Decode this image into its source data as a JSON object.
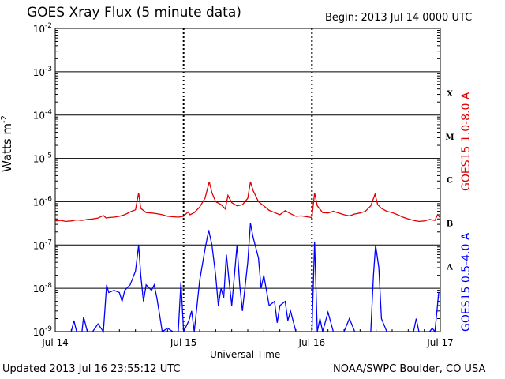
{
  "header": {
    "title": "GOES Xray Flux (5 minute data)",
    "begin": "Begin:  2013 Jul 14 0000 UTC"
  },
  "footer": {
    "updated": "Updated 2013 Jul 16 23:55:12 UTC",
    "credit": "NOAA/SWPC Boulder, CO USA"
  },
  "colors": {
    "long": "#e00000",
    "short": "#0000ff",
    "grid": "#000000"
  },
  "chart_data": {
    "type": "line",
    "xlabel": "Universal Time",
    "ylabel": "Watts m",
    "ylabel_sup": "-2",
    "y_scale": "log",
    "ylim": [
      1e-09,
      0.01
    ],
    "xlim_hours": [
      0,
      72
    ],
    "x_ticks": [
      "Jul 14",
      "Jul 15",
      "Jul 16",
      "Jul 17"
    ],
    "y_ticks": [
      {
        "value": 0.01,
        "base": "10",
        "exp": "-2"
      },
      {
        "value": 0.001,
        "base": "10",
        "exp": "-3"
      },
      {
        "value": 0.0001,
        "base": "10",
        "exp": "-4"
      },
      {
        "value": 1e-05,
        "base": "10",
        "exp": "-5"
      },
      {
        "value": 1e-06,
        "base": "10",
        "exp": "-6"
      },
      {
        "value": 1e-07,
        "base": "10",
        "exp": "-7"
      },
      {
        "value": 1e-08,
        "base": "10",
        "exp": "-8"
      },
      {
        "value": 1e-09,
        "base": "10",
        "exp": "-9"
      }
    ],
    "flare_classes": [
      {
        "label": "X",
        "value": 0.00032
      },
      {
        "label": "M",
        "value": 3.2e-05
      },
      {
        "label": "C",
        "value": 3.2e-06
      },
      {
        "label": "B",
        "value": 3.2e-07
      },
      {
        "label": "A",
        "value": 3.2e-08
      }
    ],
    "grid": true,
    "series": [
      {
        "name": "GOES15 1.0-8.0 A",
        "color": "#e00000",
        "points": [
          [
            0,
            3.6e-07
          ],
          [
            1,
            3.7e-07
          ],
          [
            2,
            3.5e-07
          ],
          [
            3,
            3.6e-07
          ],
          [
            4,
            3.8e-07
          ],
          [
            5,
            3.7e-07
          ],
          [
            6,
            3.9e-07
          ],
          [
            7,
            4e-07
          ],
          [
            8,
            4.2e-07
          ],
          [
            9,
            4.8e-07
          ],
          [
            9.5,
            4.2e-07
          ],
          [
            10,
            4.3e-07
          ],
          [
            11,
            4.4e-07
          ],
          [
            12,
            4.6e-07
          ],
          [
            13,
            5e-07
          ],
          [
            14,
            5.8e-07
          ],
          [
            15,
            6.5e-07
          ],
          [
            15.6,
            1.6e-06
          ],
          [
            16,
            7e-07
          ],
          [
            17,
            5.6e-07
          ],
          [
            18,
            5.5e-07
          ],
          [
            19,
            5.3e-07
          ],
          [
            20,
            5e-07
          ],
          [
            21,
            4.6e-07
          ],
          [
            22,
            4.5e-07
          ],
          [
            23,
            4.4e-07
          ],
          [
            24,
            4.6e-07
          ],
          [
            24.8,
            5.8e-07
          ],
          [
            25.2,
            5e-07
          ],
          [
            26,
            5.6e-07
          ],
          [
            27,
            7.5e-07
          ],
          [
            28,
            1.2e-06
          ],
          [
            28.8,
            2.9e-06
          ],
          [
            29.3,
            1.6e-06
          ],
          [
            30,
            1e-06
          ],
          [
            31,
            8.6e-07
          ],
          [
            31.8,
            6.8e-07
          ],
          [
            32.3,
            1.4e-06
          ],
          [
            33,
            9.5e-07
          ],
          [
            34,
            8e-07
          ],
          [
            35,
            8.5e-07
          ],
          [
            36,
            1.2e-06
          ],
          [
            36.5,
            2.9e-06
          ],
          [
            37,
            1.8e-06
          ],
          [
            38,
            1e-06
          ],
          [
            39,
            8e-07
          ],
          [
            40,
            6.3e-07
          ],
          [
            41,
            5.6e-07
          ],
          [
            42,
            5e-07
          ],
          [
            43,
            6.2e-07
          ],
          [
            44,
            5.3e-07
          ],
          [
            45,
            4.6e-07
          ],
          [
            46,
            4.7e-07
          ],
          [
            47,
            4.5e-07
          ],
          [
            48,
            4.3e-07
          ],
          [
            48.5,
            1.6e-06
          ],
          [
            49,
            8e-07
          ],
          [
            50,
            5.6e-07
          ],
          [
            51,
            5.5e-07
          ],
          [
            52,
            6e-07
          ],
          [
            53,
            5.5e-07
          ],
          [
            54,
            5e-07
          ],
          [
            55,
            4.7e-07
          ],
          [
            56,
            5.2e-07
          ],
          [
            57,
            5.5e-07
          ],
          [
            58,
            6e-07
          ],
          [
            59,
            8e-07
          ],
          [
            59.8,
            1.5e-06
          ],
          [
            60.3,
            8.5e-07
          ],
          [
            61,
            7e-07
          ],
          [
            62,
            6e-07
          ],
          [
            63,
            5.6e-07
          ],
          [
            64,
            5e-07
          ],
          [
            65,
            4.4e-07
          ],
          [
            66,
            4e-07
          ],
          [
            67,
            3.7e-07
          ],
          [
            68,
            3.5e-07
          ],
          [
            69,
            3.6e-07
          ],
          [
            70,
            3.9e-07
          ],
          [
            71,
            3.7e-07
          ],
          [
            71.5,
            5e-07
          ],
          [
            72,
            4.2e-07
          ]
        ]
      },
      {
        "name": "GOES15 0.5-4.0 A",
        "color": "#0000ff",
        "points": [
          [
            0,
            1e-09
          ],
          [
            3,
            1e-09
          ],
          [
            3.5,
            1.8e-09
          ],
          [
            4,
            1e-09
          ],
          [
            5,
            1e-09
          ],
          [
            5.3,
            2.2e-09
          ],
          [
            6,
            1e-09
          ],
          [
            7,
            1e-09
          ],
          [
            8,
            1.5e-09
          ],
          [
            9,
            1e-09
          ],
          [
            9.6,
            1.2e-08
          ],
          [
            10,
            8e-09
          ],
          [
            11,
            9e-09
          ],
          [
            12,
            8e-09
          ],
          [
            12.5,
            5e-09
          ],
          [
            13,
            9e-09
          ],
          [
            14,
            1.2e-08
          ],
          [
            15,
            2.5e-08
          ],
          [
            15.6,
            1e-07
          ],
          [
            16,
            2e-08
          ],
          [
            16.5,
            5e-09
          ],
          [
            17,
            1.2e-08
          ],
          [
            18,
            9e-09
          ],
          [
            18.5,
            1.2e-08
          ],
          [
            19,
            6e-09
          ],
          [
            19.5,
            2.5e-09
          ],
          [
            20,
            1e-09
          ],
          [
            21,
            1.2e-09
          ],
          [
            22,
            1e-09
          ],
          [
            23,
            1e-09
          ],
          [
            23.5,
            1.4e-08
          ],
          [
            24,
            1e-09
          ],
          [
            25,
            1.8e-09
          ],
          [
            25.5,
            3e-09
          ],
          [
            26,
            1e-09
          ],
          [
            27,
            1.5e-08
          ],
          [
            28,
            8e-08
          ],
          [
            28.7,
            2.2e-07
          ],
          [
            29.3,
            1e-07
          ],
          [
            30,
            2e-08
          ],
          [
            30.5,
            4e-09
          ],
          [
            31,
            1e-08
          ],
          [
            31.5,
            6e-09
          ],
          [
            32,
            6e-08
          ],
          [
            32.5,
            1.5e-08
          ],
          [
            33,
            4e-09
          ],
          [
            33.5,
            2e-08
          ],
          [
            34,
            1e-07
          ],
          [
            34.5,
            1.2e-08
          ],
          [
            35,
            3e-09
          ],
          [
            36,
            4e-08
          ],
          [
            36.5,
            3.2e-07
          ],
          [
            37,
            1.5e-07
          ],
          [
            38,
            5e-08
          ],
          [
            38.5,
            1e-08
          ],
          [
            39,
            2e-08
          ],
          [
            40,
            4e-09
          ],
          [
            41,
            5e-09
          ],
          [
            41.5,
            1.6e-09
          ],
          [
            42,
            4e-09
          ],
          [
            43,
            5e-09
          ],
          [
            43.5,
            1.8e-09
          ],
          [
            44,
            3e-09
          ],
          [
            45,
            1e-09
          ],
          [
            46,
            1e-09
          ],
          [
            47,
            1e-09
          ],
          [
            48,
            1e-09
          ],
          [
            48.5,
            1.2e-07
          ],
          [
            49,
            1e-09
          ],
          [
            49.5,
            2e-09
          ],
          [
            50,
            1e-09
          ],
          [
            51,
            2.8e-09
          ],
          [
            52,
            1e-09
          ],
          [
            53,
            1e-09
          ],
          [
            54,
            1e-09
          ],
          [
            55,
            2e-09
          ],
          [
            56,
            1e-09
          ],
          [
            57,
            1e-09
          ],
          [
            58,
            1e-09
          ],
          [
            59,
            1e-09
          ],
          [
            59.5,
            2e-08
          ],
          [
            59.9,
            1e-07
          ],
          [
            60.5,
            3e-08
          ],
          [
            61,
            2e-09
          ],
          [
            62,
            1e-09
          ],
          [
            63,
            1e-09
          ],
          [
            64,
            1e-09
          ],
          [
            65,
            1e-09
          ],
          [
            66,
            1e-09
          ],
          [
            67,
            1e-09
          ],
          [
            67.5,
            2e-09
          ],
          [
            68,
            1e-09
          ],
          [
            69,
            1e-09
          ],
          [
            70,
            1e-09
          ],
          [
            70.5,
            1.2e-09
          ],
          [
            71,
            1e-09
          ],
          [
            71.7,
            8e-09
          ],
          [
            72,
            8e-09
          ]
        ]
      }
    ]
  }
}
